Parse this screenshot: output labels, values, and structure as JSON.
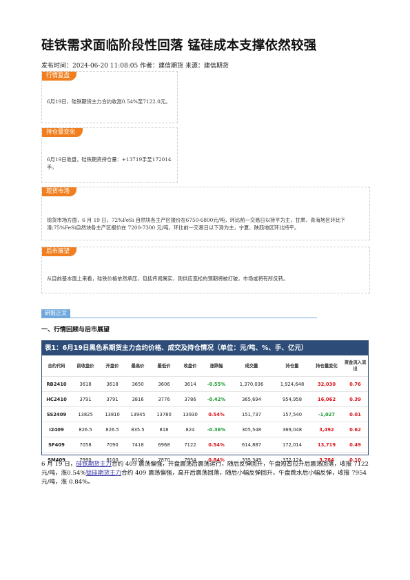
{
  "title": "硅铁需求面临阶段性回落 锰硅成本支撑依然较强",
  "meta": "发布时间：2024-06-20 11:08:05 作者：建信期货 来源：建信期货",
  "sections": {
    "market_review": {
      "tag": "行情复盘",
      "text": "6月19日，硅铁期货主力合约收涨0.54%至7122.0元。"
    },
    "position": {
      "tag": "持仓量变化",
      "text": "6月19日收盘，硅铁期货持仓量：+13719手至172014手。"
    },
    "spot": {
      "tag": "现货市场",
      "text": "现货市场方面，6 月 19 日，72%FeSi 自然块各主产区报价在6750-6800元/吨，环比前一交易日以持平为主，甘肃、青海地区环比下滑;75%FeSi自然块各主产区报价在 7200-7300 元/吨，环比前一交易日以下滑为主，宁夏、陕西地区环比持平。"
    },
    "outlook": {
      "tag": "后市展望",
      "text": "从目前基本面上来看，硅铁价格依然承压，包括传闻属实，则供应宽松的预期将被打破，市场或将有所反转。"
    }
  },
  "report_tab": "研报正文",
  "heading": "一、行情回顾与后市展望",
  "table": {
    "title": "表1：6月19日黑色系期货主力合约价格、成交及持仓情况（单位：元/吨、%、手、亿元）",
    "headers": [
      "合约代码",
      "前收盘价",
      "开盘价",
      "最高价",
      "最低价",
      "收盘价",
      "涨跌幅",
      "成交量",
      "持仓量",
      "持仓量变化",
      "资金流入流出"
    ],
    "rows": [
      [
        "RB2410",
        "3618",
        "3618",
        "3650",
        "3606",
        "3614",
        "-0.55%",
        "1,370,036",
        "1,924,648",
        "32,030",
        "0.76"
      ],
      [
        "HC2410",
        "3791",
        "3791",
        "3816",
        "3776",
        "3786",
        "-0.42%",
        "365,694",
        "954,958",
        "16,062",
        "0.39"
      ],
      [
        "SS2409",
        "13825",
        "13810",
        "13945",
        "13780",
        "13930",
        "0.54%",
        "151,737",
        "157,540",
        "-1,027",
        "0.01"
      ],
      [
        "I2409",
        "826.5",
        "826.5",
        "835.5",
        "818",
        "824",
        "-0.36%",
        "305,548",
        "369,048",
        "3,492",
        "0.62"
      ],
      [
        "SF409",
        "7058",
        "7090",
        "7418",
        "6968",
        "7122",
        "0.54%",
        "614,887",
        "172,014",
        "13,719",
        "0.49"
      ],
      [
        "SM409",
        "7990",
        "8100",
        "8104",
        "7870",
        "7954",
        "0.84%",
        "335,349",
        "372,124",
        "3,784",
        "0.10"
      ]
    ]
  },
  "paragraph": {
    "p1": "6 月 19 日，",
    "link1": "硅铁期货主力",
    "p2": "合约 409 震荡偏强，开盘震荡后震荡运行，随后反弹回升，午盘短暂拉升后震荡回落，收报 7122 元/吨，涨0.54%",
    "link2": "锰硅期货主力",
    "p3": "合约 409 震荡偏强，高开后震荡回落，随后小幅反弹回升，午盘跳水后小幅反弹，收报 7954 元/吨，涨 0.84%。"
  },
  "colors": {
    "tag": "#f07e1e",
    "table_header": "#2d4c78",
    "report_tab": "#6fa8dc",
    "up": "#d6121a",
    "down": "#1a9a2e"
  }
}
